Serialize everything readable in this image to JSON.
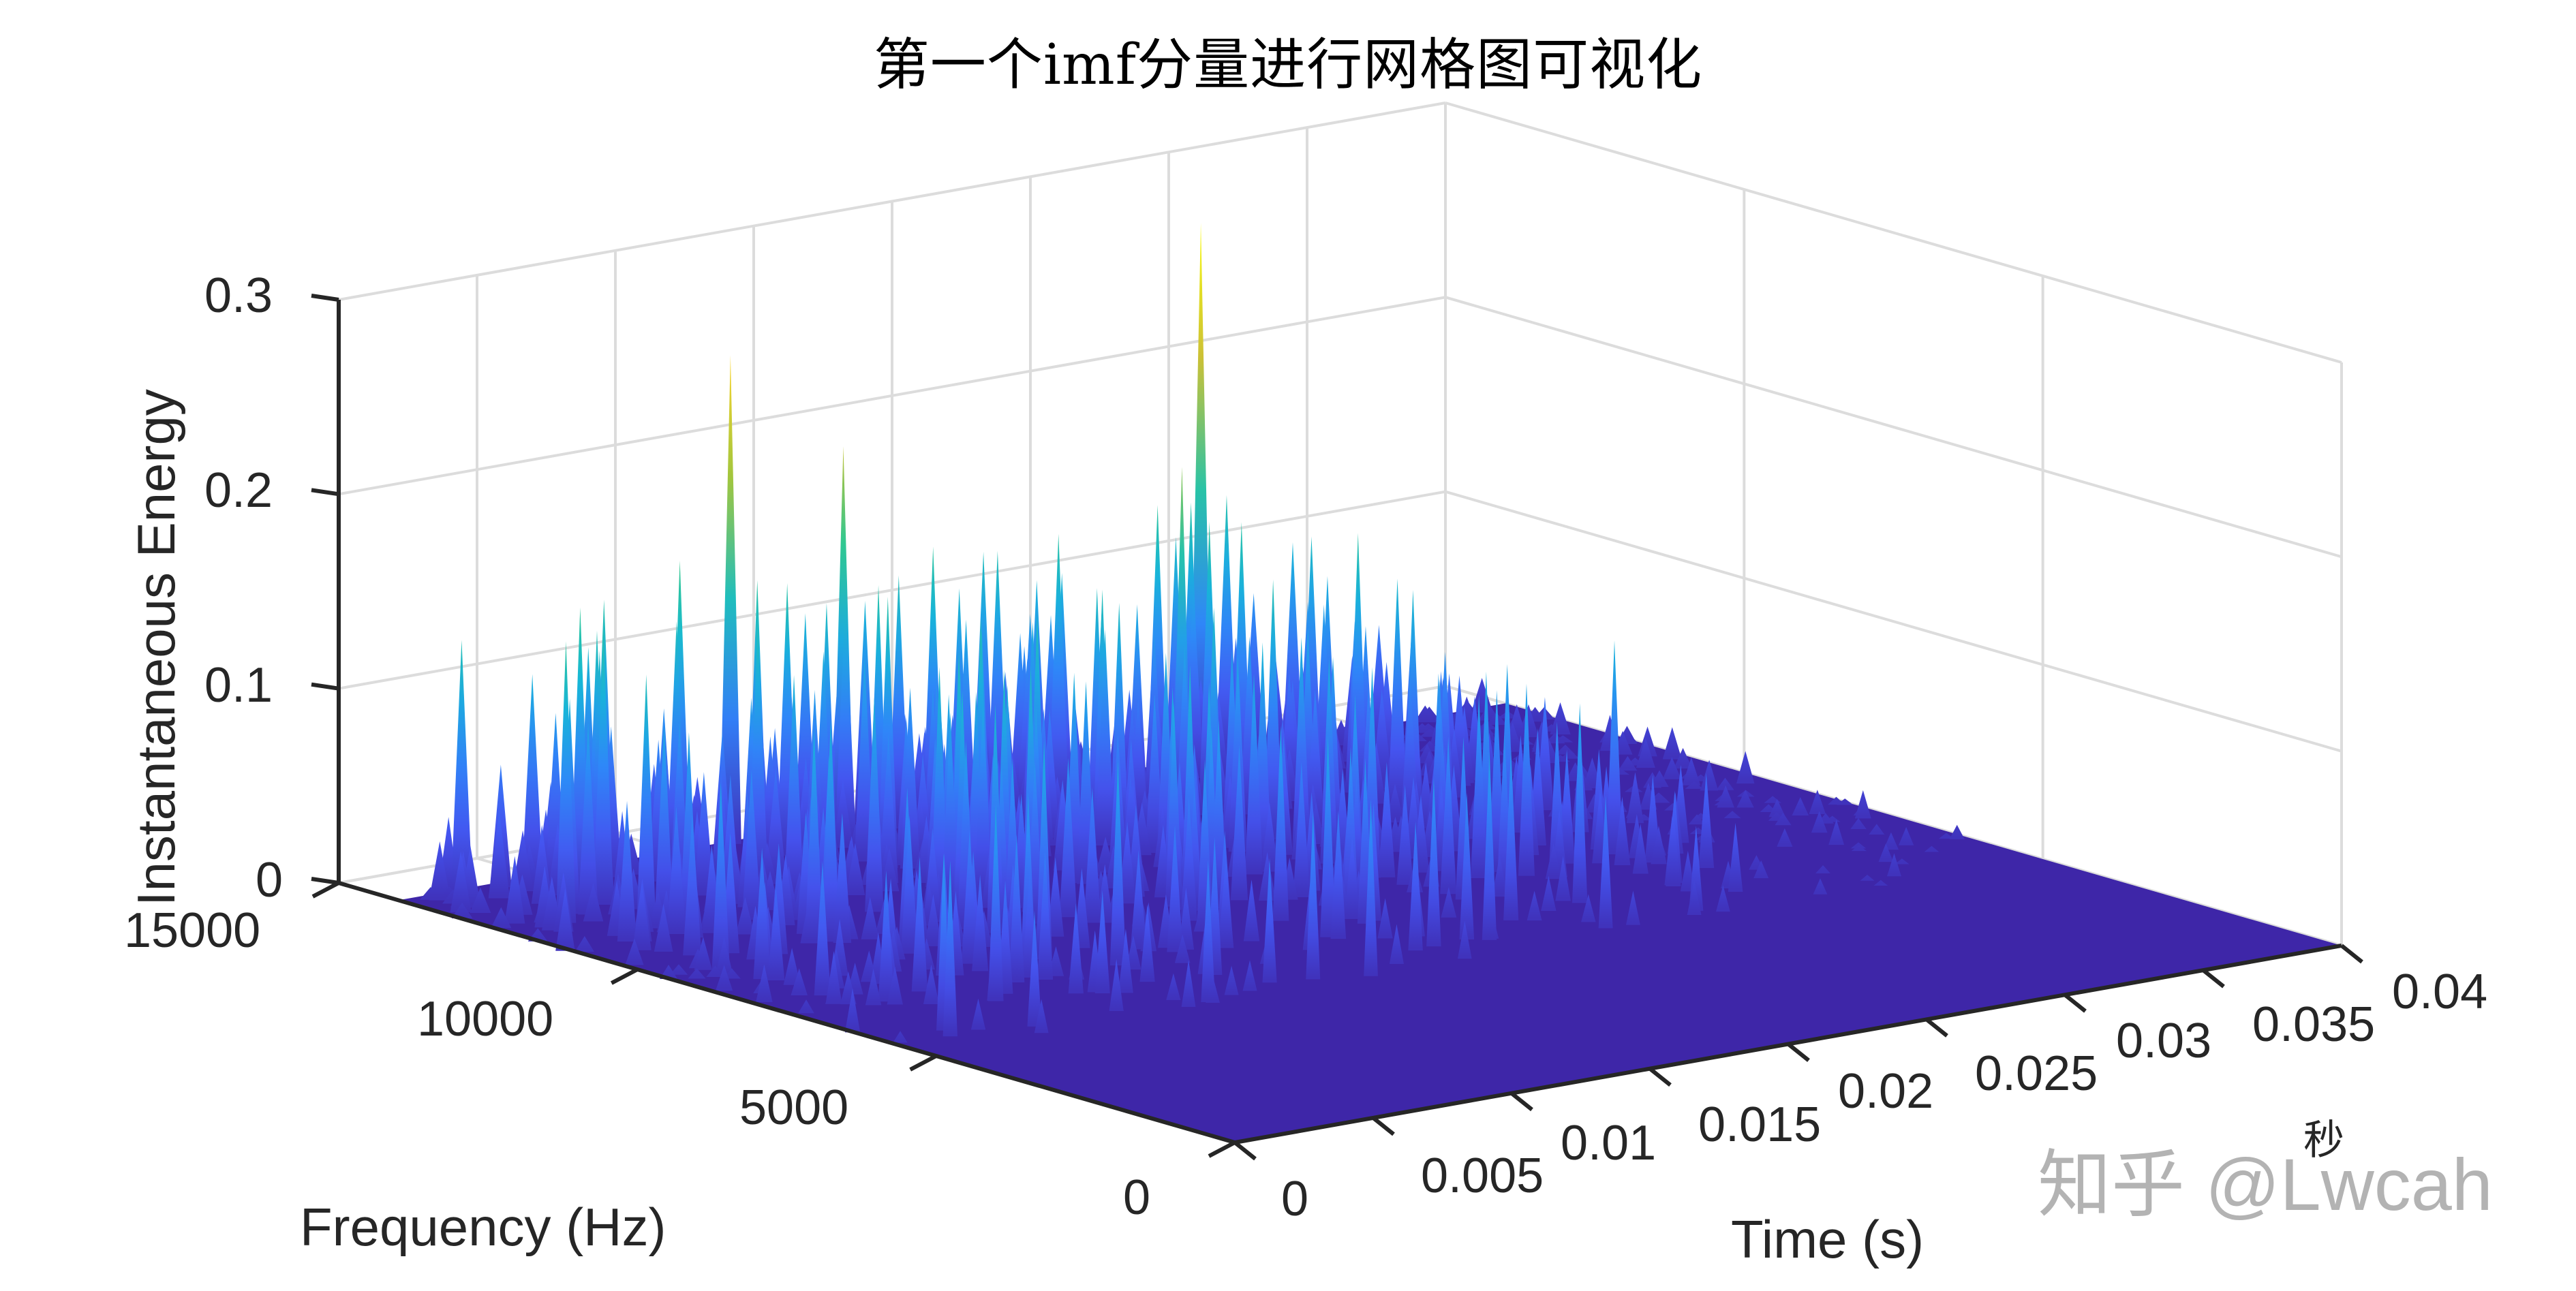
{
  "title": "第一个imf分量进行网格图可视化",
  "watermark": "知乎 @Lwcah",
  "chart_data": {
    "type": "surface",
    "title": "第一个imf分量进行网格图可视化",
    "xlabel": "Time (s)",
    "ylabel": "Frequency (Hz)",
    "zlabel": "Instantaneous Energy",
    "x_unit_note": "秒",
    "xlim": [
      0,
      0.04
    ],
    "ylim": [
      0,
      15000
    ],
    "zlim": [
      0,
      0.3
    ],
    "x_ticks": [
      "0",
      "0.005",
      "0.01",
      "0.015",
      "0.02",
      "0.025",
      "0.03",
      "0.035",
      "0.04"
    ],
    "y_ticks": [
      "0",
      "5000",
      "10000",
      "15000"
    ],
    "z_ticks": [
      "0",
      "0.1",
      "0.2",
      "0.3"
    ],
    "grid": true,
    "colormap": "parula",
    "colormap_stops": [
      "#3e26a8",
      "#4454f0",
      "#2e88f8",
      "#16b8d6",
      "#31c98e",
      "#b4c531",
      "#fbb93d",
      "#f9fb15"
    ],
    "surface_nonzero_freq_range_hz": [
      0,
      14000
    ],
    "notable_peaks": [
      {
        "time_s": 0.012,
        "freq_hz": 14000,
        "energy": 0.25
      },
      {
        "time_s": 0.029,
        "freq_hz": 14000,
        "energy": 0.275
      },
      {
        "time_s": 0.015,
        "freq_hz": 13500,
        "energy": 0.2
      },
      {
        "time_s": 0.024,
        "freq_hz": 12000,
        "energy": 0.18
      }
    ],
    "typical_spike_energy_range": [
      0.02,
      0.16
    ],
    "baseline_energy": 0
  }
}
